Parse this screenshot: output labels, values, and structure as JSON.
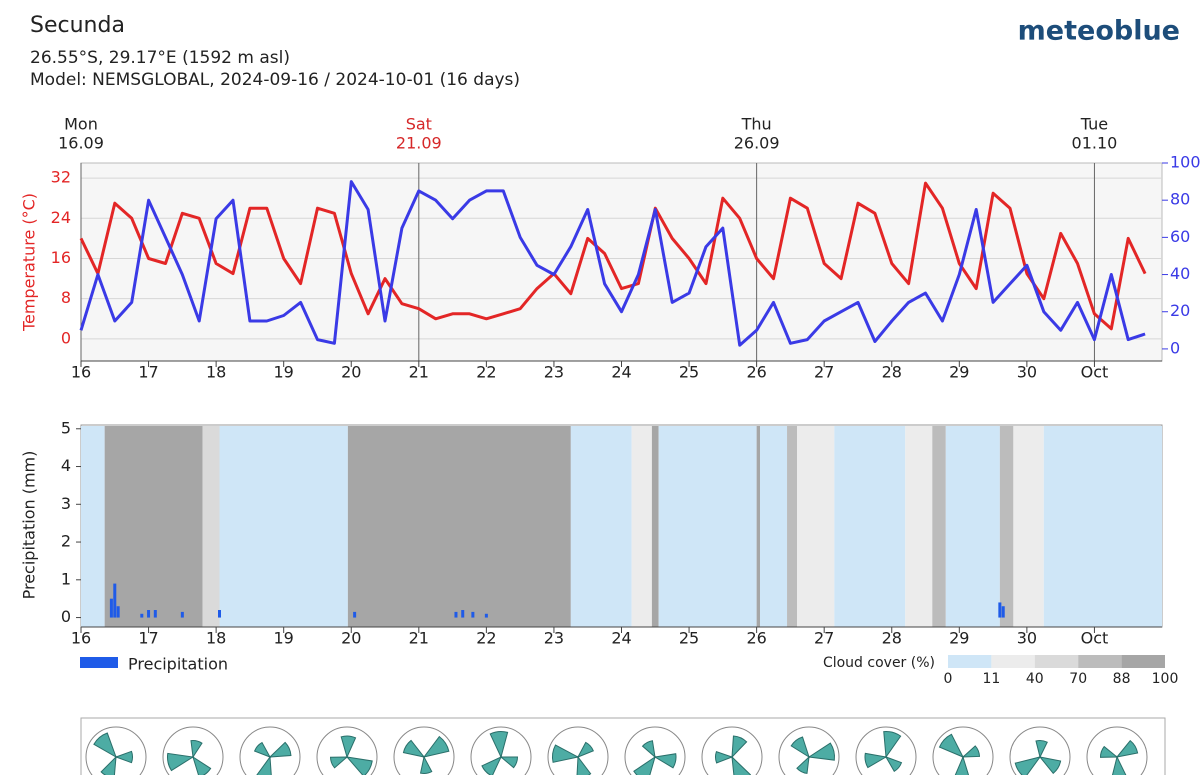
{
  "header": {
    "title": "Secunda",
    "location": "26.55°S, 29.17°E (1592 m asl)",
    "model": "Model: NEMSGLOBAL, 2024-09-16 / 2024-10-01 (16 days)",
    "logo": "meteoblue"
  },
  "chart_data": [
    {
      "type": "line",
      "ylabel": "Temperature (°C)",
      "day_markers": [
        {
          "value": 16,
          "weekday": "Mon",
          "date": "16.09",
          "color": "#222222"
        },
        {
          "value": 21,
          "weekday": "Sat",
          "date": "21.09",
          "color": "#d62728"
        },
        {
          "value": 26,
          "weekday": "Thu",
          "date": "26.09",
          "color": "#222222"
        },
        {
          "value": 31,
          "weekday": "Tue",
          "date": "01.10",
          "color": "#222222"
        }
      ],
      "x": [
        16,
        16.25,
        16.5,
        16.75,
        17,
        17.25,
        17.5,
        17.75,
        18,
        18.25,
        18.5,
        18.75,
        19,
        19.25,
        19.5,
        19.75,
        20,
        20.25,
        20.5,
        20.75,
        21,
        21.25,
        21.5,
        21.75,
        22,
        22.25,
        22.5,
        22.75,
        23,
        23.25,
        23.5,
        23.75,
        24,
        24.25,
        24.5,
        24.75,
        25,
        25.25,
        25.5,
        25.75,
        26,
        26.25,
        26.5,
        26.75,
        27,
        27.25,
        27.5,
        27.75,
        28,
        28.25,
        28.5,
        28.75,
        29,
        29.25,
        29.5,
        29.75,
        30,
        30.25,
        30.5,
        30.75,
        31,
        31.25,
        31.5,
        31.75
      ],
      "xlim": [
        16,
        32
      ],
      "xticks": [
        16,
        17,
        18,
        19,
        20,
        21,
        22,
        23,
        24,
        25,
        26,
        27,
        28,
        29,
        30,
        {
          "value": 31,
          "label": "Oct"
        }
      ],
      "ylim": [
        -4.4,
        35
      ],
      "yticks": [
        0,
        8,
        16,
        24,
        32
      ],
      "y2lim": [
        -6.5,
        100
      ],
      "y2ticks": [
        0,
        20,
        40,
        60,
        80,
        100
      ],
      "grid": true,
      "series": [
        {
          "color": "#e32626",
          "values": [
            20,
            13,
            27,
            24,
            16,
            15,
            25,
            24,
            15,
            13,
            26,
            26,
            16,
            11,
            26,
            25,
            13,
            5,
            12,
            7,
            6,
            4,
            5,
            5,
            4,
            5,
            6,
            10,
            13,
            9,
            20,
            17,
            10,
            11,
            26,
            20,
            16,
            11,
            28,
            24,
            16,
            12,
            28,
            26,
            15,
            12,
            27,
            25,
            15,
            11,
            31,
            26,
            15,
            10,
            29,
            26,
            13,
            8,
            21,
            15,
            5,
            2,
            20,
            13
          ]
        },
        {
          "color": "#3a3ae6",
          "axis": "y2",
          "values": [
            10,
            40,
            15,
            25,
            80,
            60,
            40,
            15,
            70,
            80,
            15,
            15,
            18,
            25,
            5,
            3,
            90,
            75,
            15,
            65,
            85,
            80,
            70,
            80,
            85,
            85,
            60,
            45,
            40,
            55,
            75,
            35,
            20,
            40,
            75,
            25,
            30,
            55,
            65,
            2,
            10,
            25,
            3,
            5,
            15,
            20,
            25,
            4,
            15,
            25,
            30,
            15,
            40,
            75,
            25,
            35,
            45,
            20,
            10,
            25,
            5,
            40,
            5,
            8
          ]
        }
      ]
    },
    {
      "type": "bar",
      "ylabel": "Precipitation (mm)",
      "xlim": [
        16,
        32
      ],
      "xticks": [
        16,
        17,
        18,
        19,
        20,
        21,
        22,
        23,
        24,
        25,
        26,
        27,
        28,
        29,
        30,
        {
          "value": 31,
          "label": "Oct"
        }
      ],
      "ylim": [
        -0.25,
        5.1
      ],
      "yticks": [
        0,
        1,
        2,
        3,
        4,
        5
      ],
      "series": [
        {
          "name": "Precipitation",
          "color": "#1f5be8",
          "x": [
            16.45,
            16.5,
            16.55,
            16.9,
            17.0,
            17.1,
            17.5,
            18.05,
            20.05,
            21.55,
            21.65,
            21.8,
            22.0,
            29.6,
            29.65
          ],
          "values": [
            0.5,
            0.9,
            0.3,
            0.1,
            0.2,
            0.2,
            0.15,
            0.2,
            0.15,
            0.15,
            0.2,
            0.15,
            0.1,
            0.4,
            0.3
          ]
        }
      ],
      "cloud_cover": {
        "label": "Cloud cover (%)",
        "ticks": [
          0,
          11,
          40,
          70,
          88,
          100
        ],
        "colors": [
          "#cfe6f7",
          "#ececec",
          "#dadada",
          "#bcbcbc",
          "#a6a6a6"
        ],
        "segments": [
          {
            "start": 16,
            "end": 16.35,
            "value": 5
          },
          {
            "start": 16.35,
            "end": 17.8,
            "value": 95
          },
          {
            "start": 17.8,
            "end": 18.05,
            "value": 60
          },
          {
            "start": 18.05,
            "end": 19.95,
            "value": 5
          },
          {
            "start": 19.95,
            "end": 23.25,
            "value": 95
          },
          {
            "start": 23.25,
            "end": 24.15,
            "value": 5
          },
          {
            "start": 24.15,
            "end": 24.45,
            "value": 30
          },
          {
            "start": 24.45,
            "end": 24.55,
            "value": 90
          },
          {
            "start": 24.55,
            "end": 26.0,
            "value": 5
          },
          {
            "start": 26.0,
            "end": 26.05,
            "value": 90
          },
          {
            "start": 26.05,
            "end": 26.45,
            "value": 5
          },
          {
            "start": 26.45,
            "end": 26.6,
            "value": 80
          },
          {
            "start": 26.6,
            "end": 27.15,
            "value": 30
          },
          {
            "start": 27.15,
            "end": 28.2,
            "value": 5
          },
          {
            "start": 28.2,
            "end": 28.6,
            "value": 30
          },
          {
            "start": 28.6,
            "end": 28.8,
            "value": 80
          },
          {
            "start": 28.8,
            "end": 29.6,
            "value": 5
          },
          {
            "start": 29.6,
            "end": 29.8,
            "value": 80
          },
          {
            "start": 29.8,
            "end": 30.25,
            "value": 30
          },
          {
            "start": 30.25,
            "end": 32,
            "value": 5
          }
        ]
      }
    }
  ]
}
